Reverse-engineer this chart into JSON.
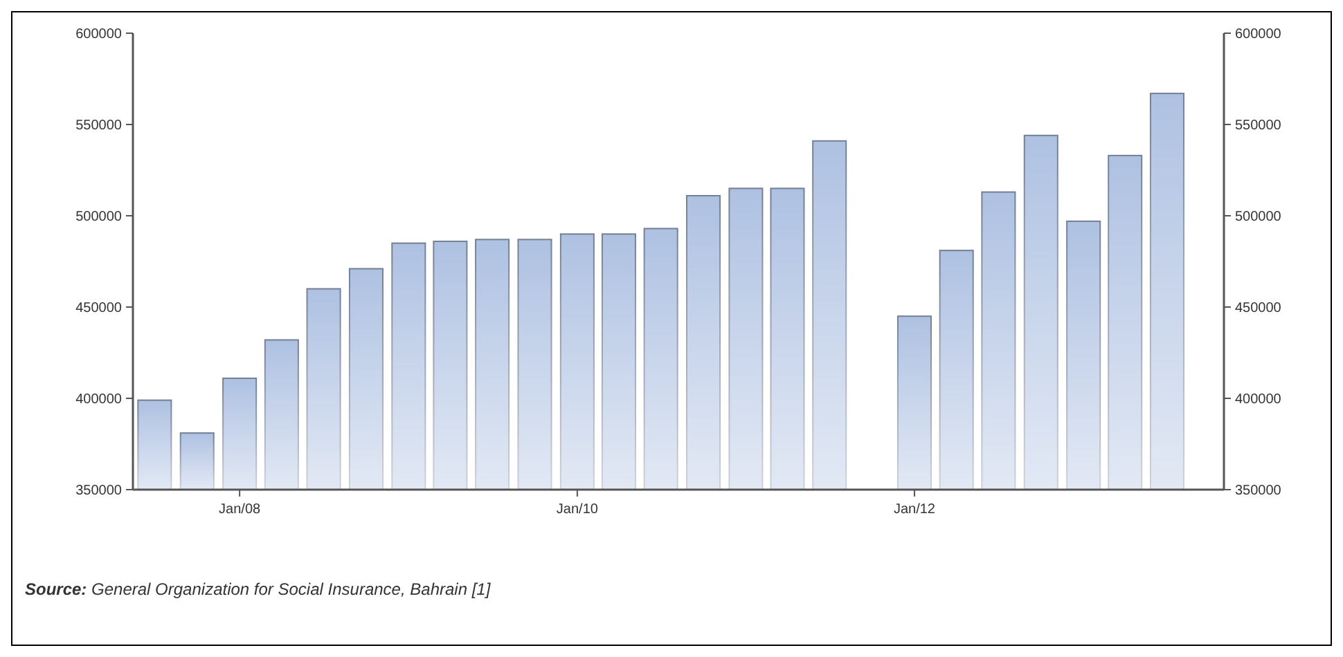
{
  "chart_data": {
    "type": "bar",
    "x": [
      "2007-07",
      "2007-10",
      "2008-01",
      "2008-04",
      "2008-07",
      "2008-10",
      "2009-01",
      "2009-04",
      "2009-07",
      "2009-10",
      "2010-01",
      "2010-04",
      "2010-07",
      "2010-10",
      "2011-01",
      "2011-04",
      "2011-07",
      "2012-01",
      "2012-04",
      "2012-07",
      "2012-10",
      "2013-01",
      "2013-04",
      "2013-07"
    ],
    "values": [
      399000,
      381000,
      411000,
      432000,
      460000,
      471000,
      485000,
      486000,
      487000,
      487000,
      490000,
      490000,
      493000,
      511000,
      515000,
      515000,
      541000,
      445000,
      481000,
      513000,
      544000,
      497000,
      533000,
      567000
    ],
    "color": "#a9bde0",
    "xlim": [
      "2007-05-15",
      "2013-11-01"
    ],
    "xticks": [
      {
        "value": "2008-01",
        "label": "Jan/08"
      },
      {
        "value": "2010-01",
        "label": "Jan/10"
      },
      {
        "value": "2012-01",
        "label": "Jan/12"
      }
    ],
    "ylim": [
      350000,
      600000
    ],
    "yticks": [
      350000,
      400000,
      450000,
      500000,
      550000,
      600000
    ],
    "y2lim": [
      350000,
      600000
    ],
    "y2ticks": [
      350000,
      400000,
      450000,
      500000,
      550000,
      600000
    ],
    "grid": false,
    "annotations": [
      "Source: General Organization for Social Insurance, Bahrain [1]"
    ]
  }
}
